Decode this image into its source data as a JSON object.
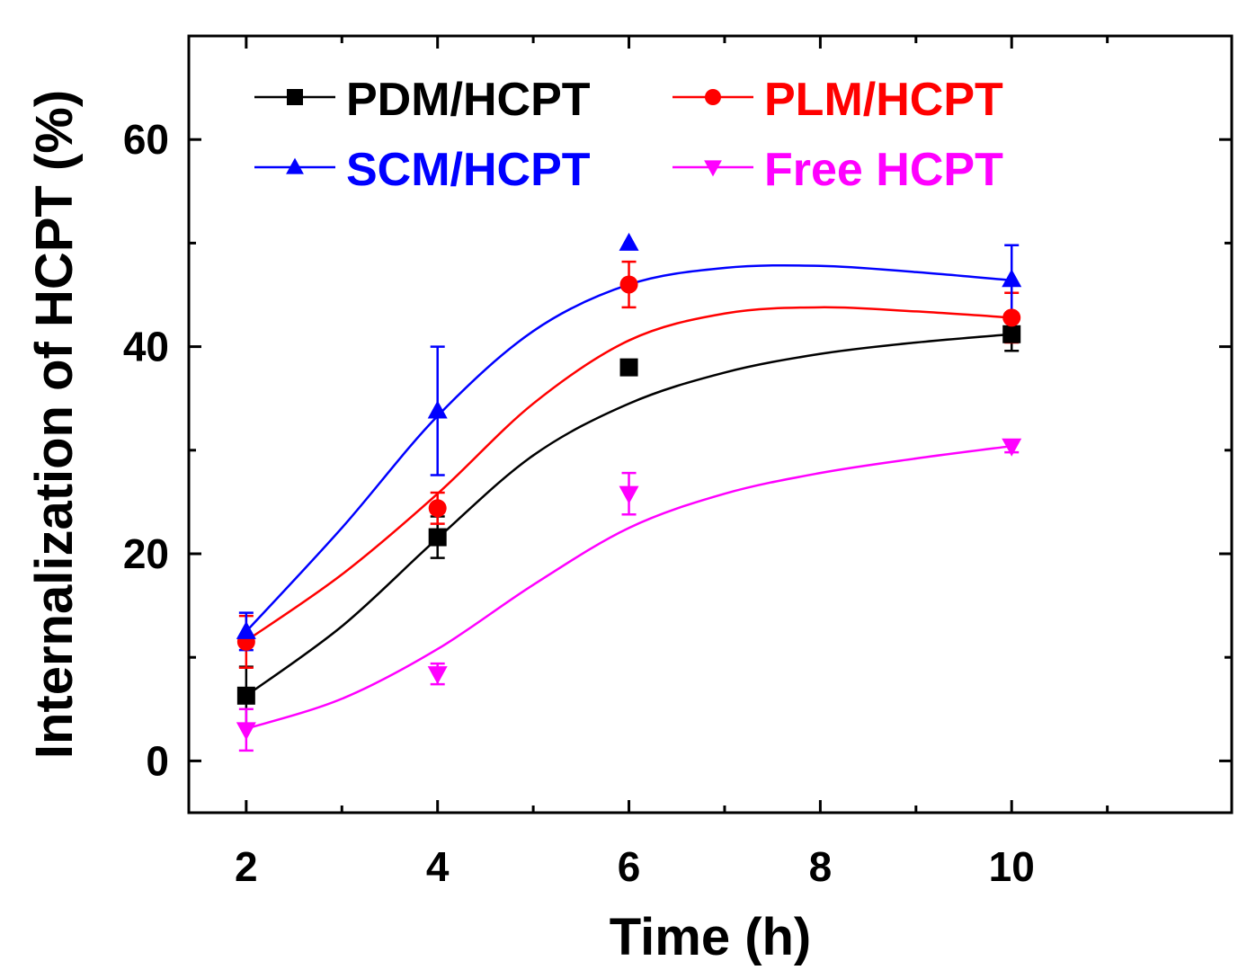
{
  "chart_data": {
    "type": "line",
    "title": "",
    "xlabel": "Time (h)",
    "ylabel": "Internalization of HCPT (%)",
    "xlim": [
      1.4,
      12.3
    ],
    "ylim": [
      -5,
      70
    ],
    "xticks": [
      2,
      4,
      6,
      8,
      10
    ],
    "xtick_labels": [
      "2",
      "4",
      "6",
      "8",
      "10"
    ],
    "yticks": [
      0,
      20,
      40,
      60
    ],
    "ytick_labels": [
      "0",
      "20",
      "40",
      "60"
    ],
    "legend_position": "top-left",
    "x": [
      2,
      4,
      6,
      10
    ],
    "series": [
      {
        "name": "PDM/HCPT",
        "color": "#000000",
        "marker": "square",
        "values": [
          6.3,
          21.6,
          38.0,
          41.2
        ],
        "errors": [
          2.8,
          2.0,
          0.0,
          1.6
        ],
        "fit": [
          [
            2,
            6.3
          ],
          [
            3,
            13.0
          ],
          [
            4,
            21.5
          ],
          [
            5,
            29.5
          ],
          [
            6,
            34.5
          ],
          [
            7,
            37.5
          ],
          [
            8,
            39.3
          ],
          [
            9,
            40.4
          ],
          [
            10,
            41.2
          ]
        ]
      },
      {
        "name": "PLM/HCPT",
        "color": "#ff0000",
        "marker": "circle",
        "values": [
          11.5,
          24.4,
          46.0,
          42.8
        ],
        "errors": [
          2.5,
          1.5,
          2.2,
          2.4
        ],
        "fit": [
          [
            2,
            11.6
          ],
          [
            3,
            18.0
          ],
          [
            4,
            25.8
          ],
          [
            5,
            34.5
          ],
          [
            6,
            40.6
          ],
          [
            7,
            43.2
          ],
          [
            8,
            43.8
          ],
          [
            9,
            43.4
          ],
          [
            10,
            42.8
          ]
        ]
      },
      {
        "name": "SCM/HCPT",
        "color": "#0000ff",
        "marker": "triangle-up",
        "values": [
          12.5,
          33.8,
          50.0,
          46.5
        ],
        "errors": [
          1.8,
          6.2,
          0.0,
          3.3
        ],
        "fit": [
          [
            2,
            12.5
          ],
          [
            3,
            22.5
          ],
          [
            4,
            33.3
          ],
          [
            5,
            41.5
          ],
          [
            6,
            46.0
          ],
          [
            7,
            47.6
          ],
          [
            8,
            47.8
          ],
          [
            9,
            47.2
          ],
          [
            10,
            46.4
          ]
        ]
      },
      {
        "name": "Free HCPT",
        "color": "#ff00ff",
        "marker": "triangle-down",
        "values": [
          3.0,
          8.4,
          25.8,
          30.4
        ],
        "errors": [
          2.0,
          1.0,
          2.0,
          0.6
        ],
        "fit": [
          [
            2,
            3.1
          ],
          [
            3,
            6.0
          ],
          [
            4,
            10.8
          ],
          [
            5,
            17.0
          ],
          [
            6,
            22.5
          ],
          [
            7,
            25.8
          ],
          [
            8,
            27.8
          ],
          [
            9,
            29.2
          ],
          [
            10,
            30.4
          ]
        ]
      }
    ]
  }
}
